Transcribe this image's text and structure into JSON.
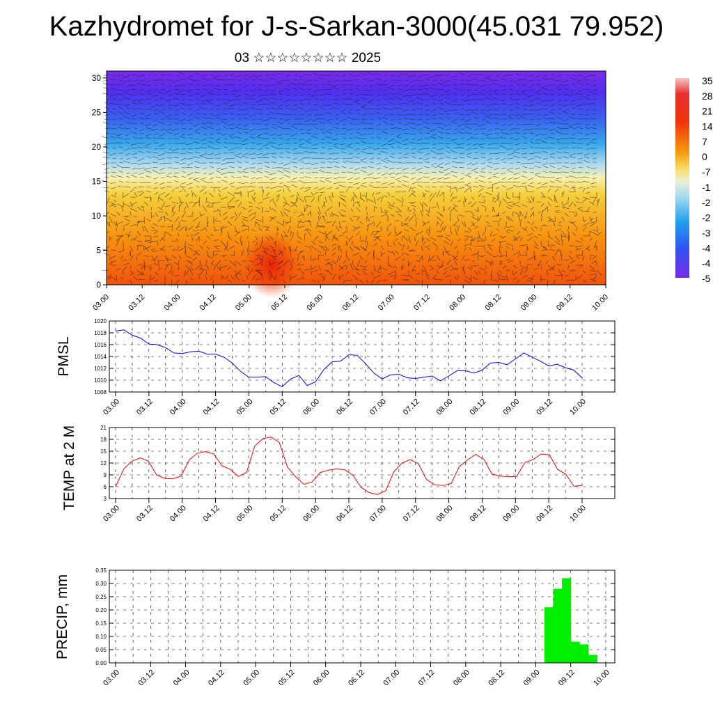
{
  "title": "Kazhydromet for J-s-Sarkan-3000(45.031 79.952)",
  "subtitle": "03 ☆☆☆☆☆☆☆☆ 2025",
  "time_labels": [
    "03.00",
    "03.12",
    "04.00",
    "04.12",
    "05.00",
    "05.12",
    "06.00",
    "06.12",
    "07.00",
    "07.12",
    "08.00",
    "08.12",
    "09.00",
    "09.12",
    "10.00"
  ],
  "colorbar_labels": [
    "35",
    "28",
    "21",
    "14",
    "7",
    "0",
    "-7",
    "-1",
    "-2",
    "-2",
    "-3",
    "-4",
    "-4",
    "-5"
  ],
  "chart_data": [
    {
      "type": "heatmap",
      "name": "temperature cross-section with wind vectors",
      "xlim": [
        0,
        56
      ],
      "ylim": [
        0,
        31
      ],
      "y_ticks": [
        0,
        5,
        10,
        15,
        20,
        25,
        30
      ],
      "colorbar": [
        "35",
        "28",
        "21",
        "14",
        "7",
        "0",
        "-7",
        "-1",
        "-2",
        "-2",
        "-3",
        "-4",
        "-4",
        "-5"
      ]
    },
    {
      "type": "line",
      "ylabel": "PMSL",
      "ylim": [
        1008,
        1020
      ],
      "y_ticks": [
        1008,
        1010,
        1012,
        1014,
        1016,
        1018,
        1020
      ],
      "color": "#0000ff",
      "values": [
        1018.3,
        1018.5,
        1017.6,
        1017.1,
        1016.1,
        1016.0,
        1015.5,
        1014.6,
        1014.5,
        1014.8,
        1014.9,
        1014.4,
        1014.4,
        1013.9,
        1012.9,
        1011.5,
        1010.5,
        1010.5,
        1010.6,
        1009.6,
        1008.9,
        1010.2,
        1010.8,
        1009.1,
        1009.7,
        1011.8,
        1013.1,
        1013.2,
        1014.3,
        1014.2,
        1012.8,
        1011.2,
        1010.2,
        1010.9,
        1011.0,
        1010.4,
        1010.3,
        1010.5,
        1010.7,
        1009.9,
        1010.7,
        1011.6,
        1011.6,
        1011.2,
        1011.7,
        1012.9,
        1013.0,
        1012.6,
        1013.6,
        1014.6,
        1013.9,
        1013.2,
        1012.4,
        1012.7,
        1012.1,
        1011.7,
        1010.4
      ]
    },
    {
      "type": "line",
      "ylabel": "TEMP at 2 M",
      "ylim": [
        3,
        21
      ],
      "y_ticks": [
        3,
        6,
        9,
        12,
        15,
        18,
        21
      ],
      "color": "#ff0000",
      "values": [
        6.0,
        10.5,
        12.5,
        13.3,
        12.5,
        9.0,
        8.1,
        8.0,
        8.7,
        12.8,
        14.5,
        14.9,
        14.3,
        11.3,
        10.4,
        8.6,
        9.6,
        16.3,
        18.2,
        18.6,
        17.2,
        11.0,
        8.5,
        6.6,
        7.2,
        9.6,
        10.2,
        10.5,
        10.3,
        8.9,
        5.8,
        4.5,
        4.0,
        5.0,
        9.8,
        12.0,
        12.9,
        11.8,
        7.8,
        6.5,
        6.3,
        6.8,
        11.1,
        12.8,
        14.2,
        12.9,
        9.2,
        8.7,
        8.5,
        8.6,
        12.1,
        12.9,
        14.3,
        14.1,
        10.4,
        9.2,
        6.1,
        6.3
      ]
    },
    {
      "type": "bar",
      "ylabel": "PRECIP, mm",
      "ylim": [
        0,
        0.35
      ],
      "y_ticks": [
        "0.00",
        "0.05",
        "0.10",
        "0.15",
        "0.20",
        "0.25",
        "0.30",
        "0.35"
      ],
      "color": "#00ee00",
      "x": [
        49,
        50,
        51,
        52,
        53,
        54
      ],
      "values": [
        0.21,
        0.28,
        0.32,
        0.08,
        0.07,
        0.03
      ]
    }
  ]
}
